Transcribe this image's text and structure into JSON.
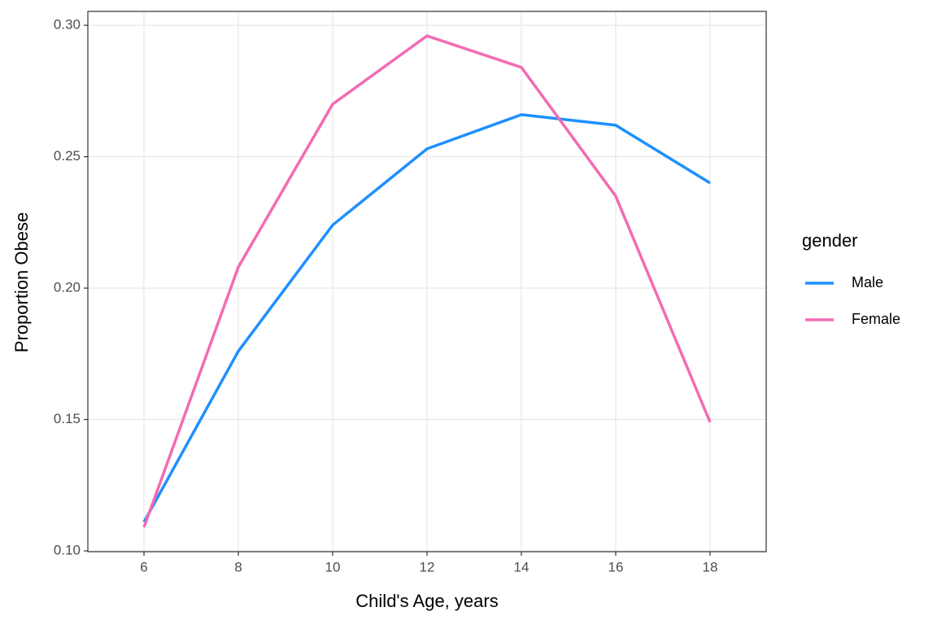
{
  "chart_data": {
    "type": "line",
    "x_label": "Child's Age, years",
    "y_label": "Proportion Obese",
    "legend_title": "gender",
    "legend": "right",
    "grid": true,
    "x": [
      6,
      8,
      10,
      12,
      14,
      16,
      18
    ],
    "series": [
      {
        "name": "Male",
        "color": "#1E90FF",
        "values": [
          0.111,
          0.176,
          0.224,
          0.253,
          0.266,
          0.262,
          0.24
        ]
      },
      {
        "name": "Female",
        "color": "#F36BB3",
        "values": [
          0.109,
          0.208,
          0.27,
          0.296,
          0.284,
          0.235,
          0.149
        ]
      }
    ],
    "xlim": [
      4.81,
      19.19
    ],
    "xticks": [
      6,
      8,
      10,
      12,
      14,
      16,
      18
    ],
    "ylim": [
      0.0997,
      0.3053
    ],
    "yticks": [
      {
        "value": 0.1,
        "label": "0.10"
      },
      {
        "value": 0.15,
        "label": "0.15"
      },
      {
        "value": 0.2,
        "label": "0.20"
      },
      {
        "value": 0.25,
        "label": "0.25"
      },
      {
        "value": 0.3,
        "label": "0.30"
      }
    ]
  }
}
